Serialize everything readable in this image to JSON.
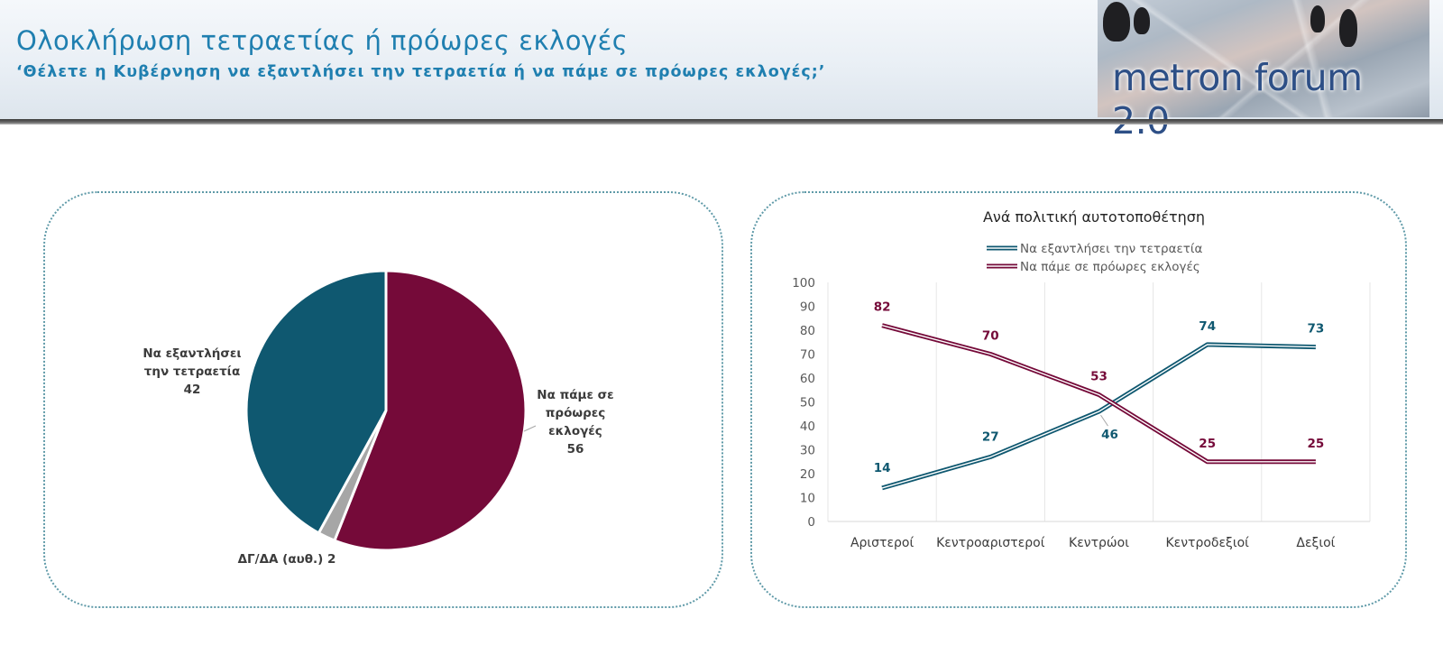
{
  "header": {
    "title": "Ολοκλήρωση τετραετίας ή πρόωρες εκλογές",
    "subtitle": "‘Θέλετε η Κυβέρνηση να εξαντλήσει την τετραετία ή να πάμε σε πρόωρες εκλογές;’",
    "logo_text": "metron forum 2.0"
  },
  "colors": {
    "teal": "#0f5870",
    "maroon": "#750a39",
    "gray": "#a6a6a6",
    "title_blue": "#1f7fb0"
  },
  "chart_data": [
    {
      "type": "pie",
      "slices": [
        {
          "label_lines": [
            "Να πάμε σε",
            "πρόωρες",
            "εκλογές"
          ],
          "value": 56,
          "color": "#750a39"
        },
        {
          "label_lines": [
            "ΔΓ/ΔΑ (αυθ.)"
          ],
          "value": 2,
          "color": "#a6a6a6"
        },
        {
          "label_lines": [
            "Να εξαντλήσει",
            "την τετραετία"
          ],
          "value": 42,
          "color": "#0f5870"
        }
      ]
    },
    {
      "type": "line",
      "title": "Ανά πολιτική αυτοτοποθέτηση",
      "categories": [
        "Αριστεροί",
        "Κεντροαριστεροί",
        "Κεντρώοι",
        "Κεντροδεξιοί",
        "Δεξιοί"
      ],
      "series": [
        {
          "name": "Να εξαντλήσει την τετραετία",
          "values": [
            14,
            27,
            46,
            74,
            73
          ],
          "color": "#0f5870"
        },
        {
          "name": "Να πάμε σε πρόωρες εκλογές",
          "values": [
            82,
            70,
            53,
            25,
            25
          ],
          "color": "#750a39"
        }
      ],
      "ylim": [
        0,
        100
      ],
      "yticks": [
        0,
        10,
        20,
        30,
        40,
        50,
        60,
        70,
        80,
        90,
        100
      ],
      "grid": "vertical",
      "legend": "top"
    }
  ]
}
